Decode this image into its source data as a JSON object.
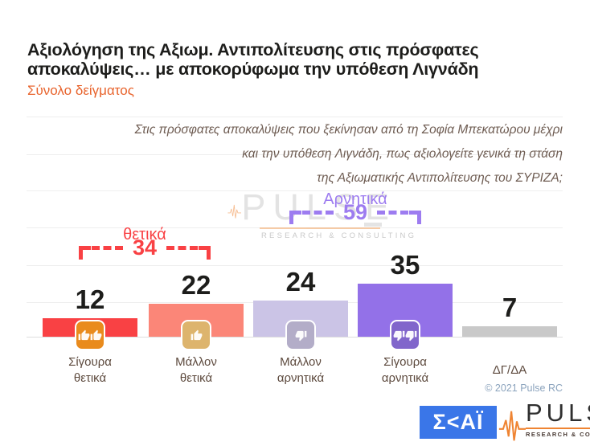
{
  "header": {
    "title_line1": "Αξιολόγηση της Αξιωμ. Αντιπολίτευσης στις πρόσφατες",
    "title_line2": "αποκαλύψεις… με αποκορύφωμα την υπόθεση Λιγνάδη",
    "subtitle": "Σύνολο δείγματος"
  },
  "question": {
    "line1": "Στις πρόσφατες αποκαλύψεις που ξεκίνησαν από τη Σοφία Μπεκατώρου μέχρι",
    "line2": "και την υπόθεση Λιγνάδη, πως αξιολογείτε γενικά τη στάση",
    "line3": "της Αξιωματικής Αντιπολίτευσης του ΣΥΡΙΖΑ;"
  },
  "chart_data": {
    "type": "bar",
    "title": "Αξιολόγηση της Αξιωμ. Αντιπολίτευσης στις πρόσφατες αποκαλύψεις… με αποκορύφωμα την υπόθεση Λιγνάδη",
    "subtitle": "Σύνολο δείγματος",
    "categories": [
      "Σίγουρα θετικά",
      "Μάλλον θετικά",
      "Μάλλον αρνητικά",
      "Σίγουρα αρνητικά",
      "ΔΓ/ΔΑ"
    ],
    "values": [
      12,
      22,
      24,
      35,
      7
    ],
    "bar_colors": [
      "#f94144",
      "#fb8678",
      "#cbc4e6",
      "#9371e8",
      "#c9c9c9"
    ],
    "icons": [
      "double-thumbs-up",
      "thumb-up",
      "thumb-down",
      "double-thumbs-down",
      null
    ],
    "icon_colors": [
      "#e98b1d",
      "#ddb46d",
      "#b3adc8",
      "#8166cb",
      null
    ],
    "groups": [
      {
        "label": "θετικά",
        "value": 34,
        "color": "#f94144",
        "spans": [
          "Σίγουρα θετικά",
          "Μάλλον θετικά"
        ]
      },
      {
        "label": "Αρνητικά",
        "value": 59,
        "color": "#9d7cf0",
        "spans": [
          "Μάλλον αρνητικά",
          "Σίγουρα αρνητικά"
        ]
      }
    ],
    "ylim": [
      0,
      40
    ],
    "grid": true,
    "legend": false,
    "value_labels": true,
    "xlabel": "",
    "ylabel": ""
  },
  "watermark": {
    "brand": "PULSE",
    "tagline": "RESEARCH & CONSULTING"
  },
  "footer": {
    "copyright": "© 2021 Pulse RC",
    "skai_logo_text": "Σ<ΑΪ",
    "pulse_logo_text": "PULSE",
    "pulse_logo_tagline": "RESEARCH & CONSULTING"
  }
}
